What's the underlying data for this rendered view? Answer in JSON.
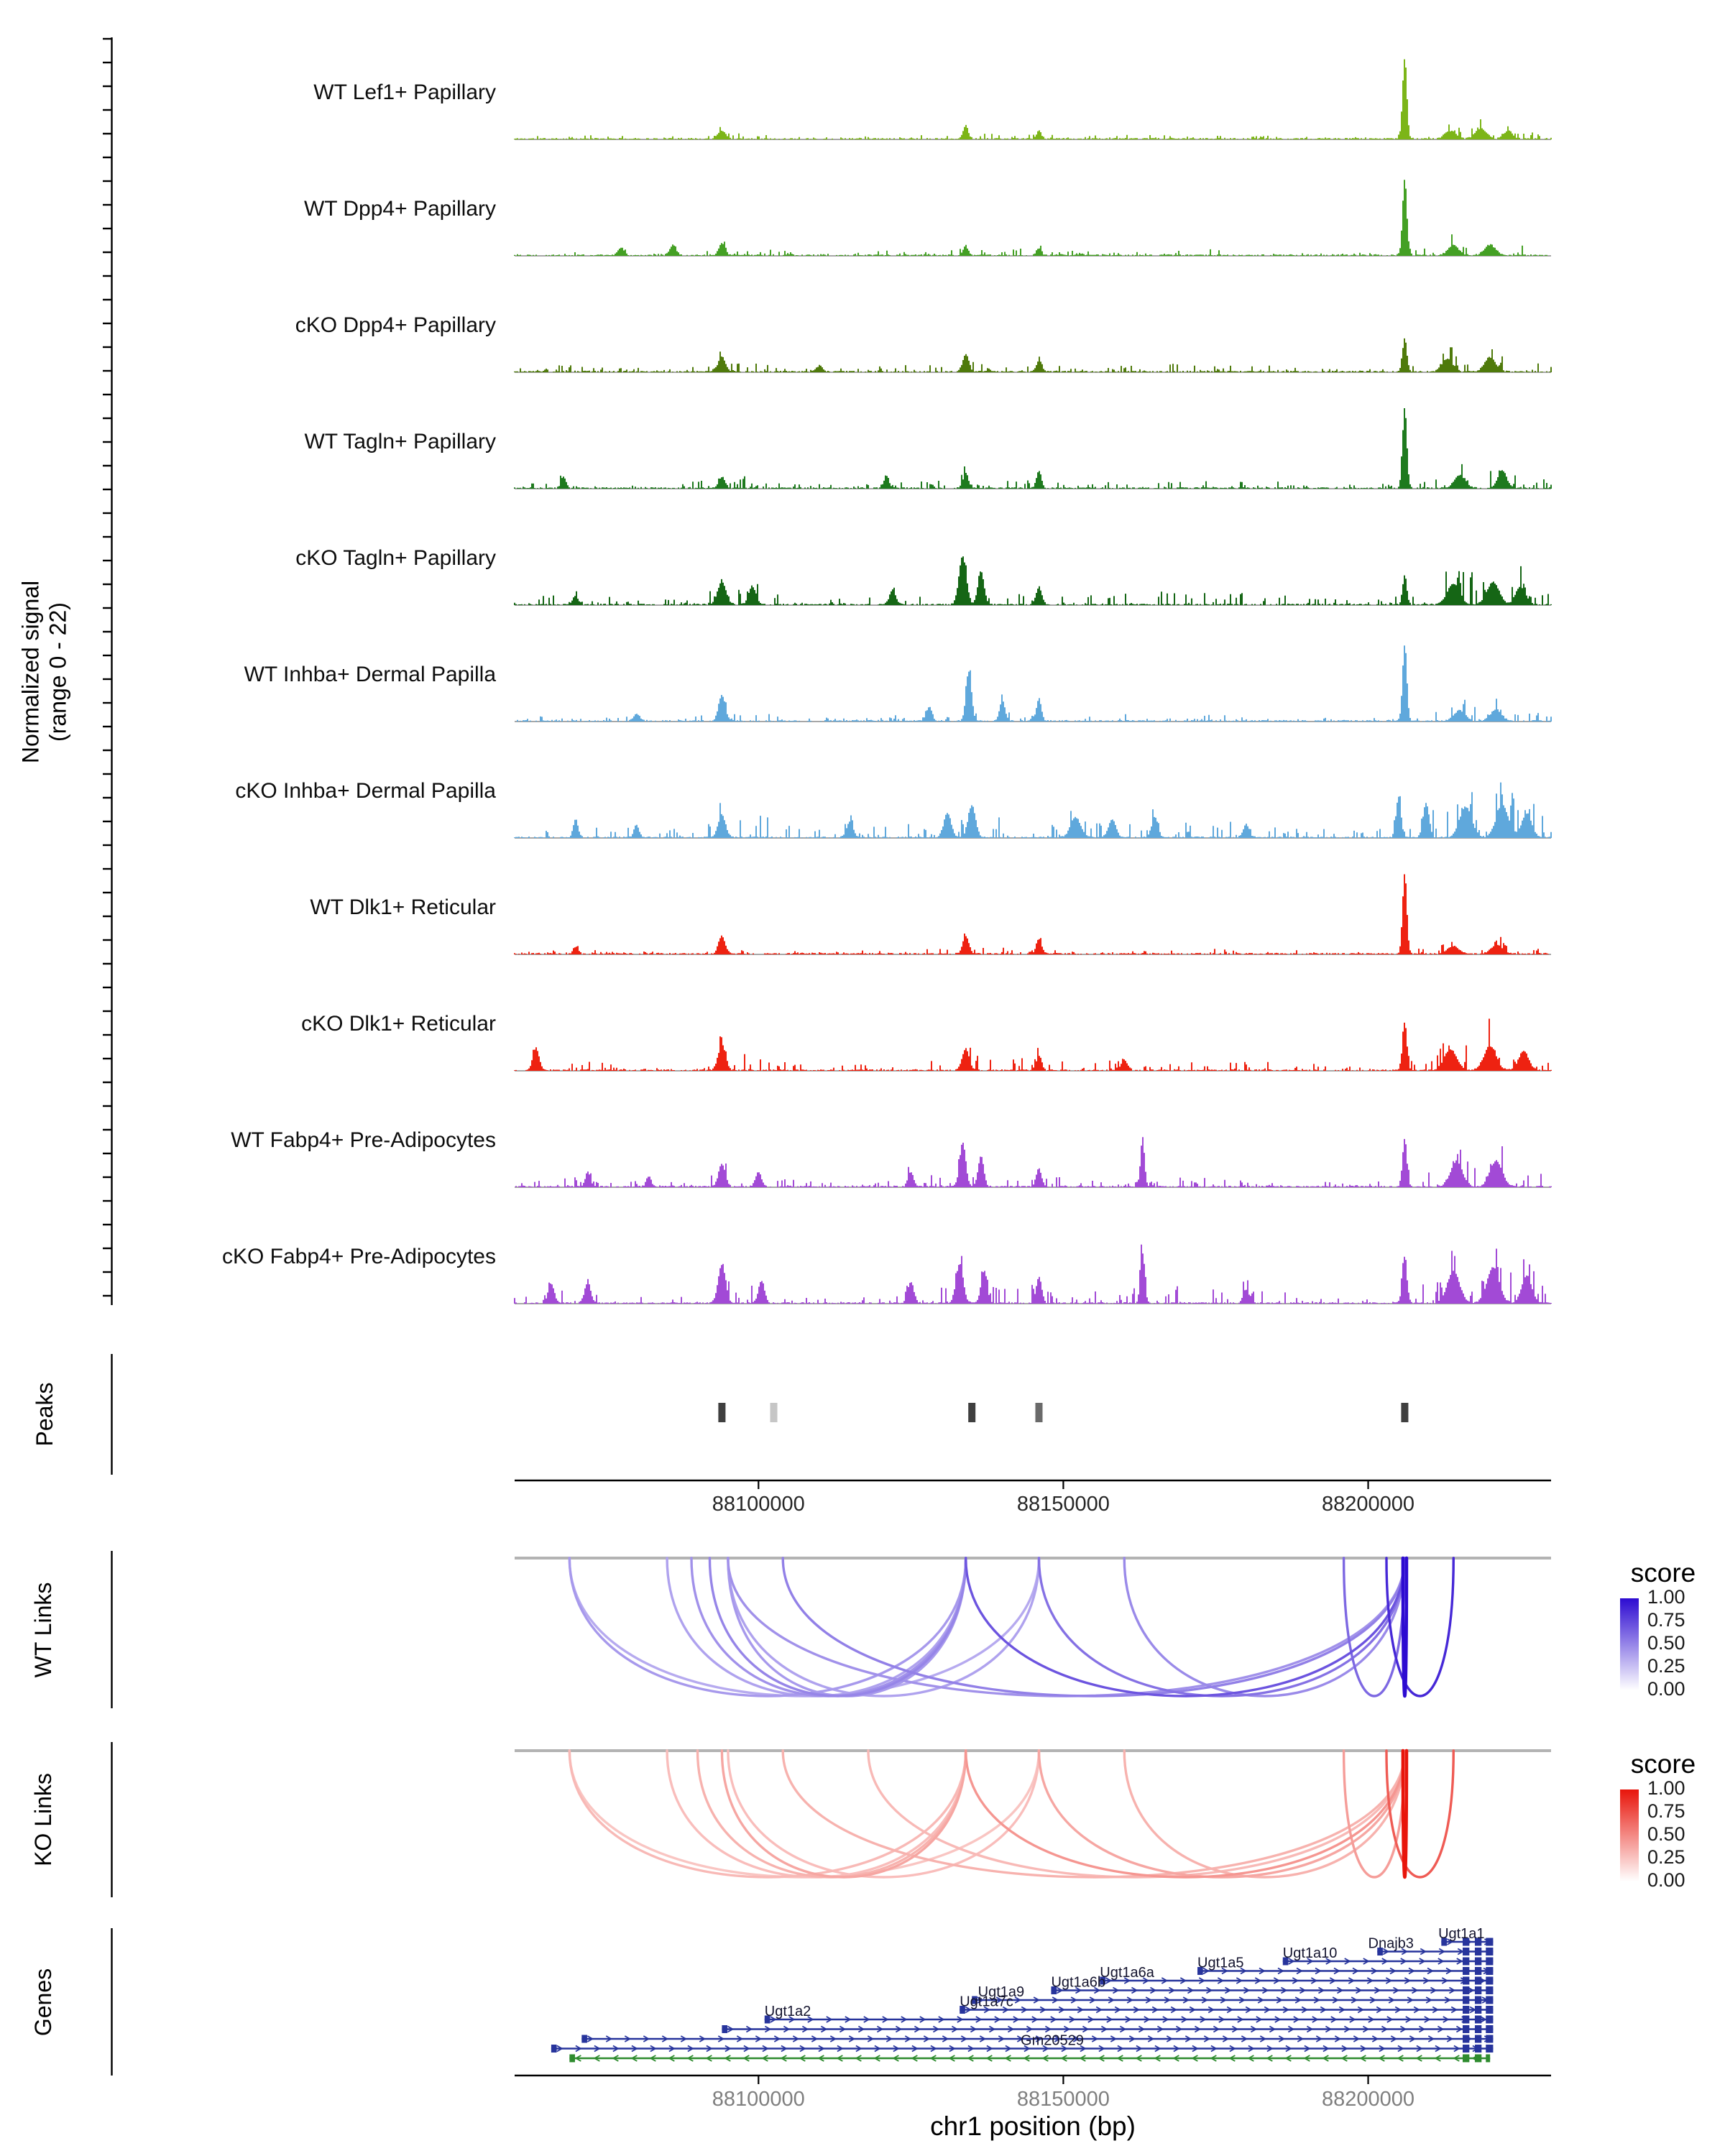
{
  "chart_data": {
    "type": "genome-tracks",
    "region": {
      "chrom": "chr1",
      "xmin": 88060000,
      "xmax": 88230000
    },
    "xaxis": {
      "ticks": [
        88100000,
        88150000,
        88200000
      ],
      "labels": [
        "88100000",
        "88150000",
        "88200000"
      ],
      "title": "chr1 position (bp)"
    },
    "signal_axis_label": {
      "line1": "Normalized signal",
      "line2": "(range 0 - 22)"
    },
    "tracks": [
      {
        "label": "WT Lef1+ Papillary",
        "color": "#7CB518",
        "seed": 11,
        "noise": 0.05,
        "peaks": [
          [
            88094000,
            0.1,
            600
          ],
          [
            88134000,
            0.17,
            400
          ],
          [
            88146000,
            0.1,
            400
          ],
          [
            88206000,
            1.0,
            350
          ],
          [
            88213500,
            0.1,
            900
          ],
          [
            88218500,
            0.13,
            900
          ],
          [
            88223000,
            0.1,
            700
          ]
        ]
      },
      {
        "label": "WT Dpp4+ Papillary",
        "color": "#44A024",
        "seed": 22,
        "noise": 0.07,
        "peaks": [
          [
            88077500,
            0.09,
            500
          ],
          [
            88086000,
            0.13,
            500
          ],
          [
            88094000,
            0.15,
            500
          ],
          [
            88134000,
            0.11,
            400
          ],
          [
            88146000,
            0.09,
            400
          ],
          [
            88206000,
            0.95,
            350
          ],
          [
            88214000,
            0.12,
            900
          ],
          [
            88220000,
            0.13,
            900
          ]
        ]
      },
      {
        "label": "cKO Dpp4+ Papillary",
        "color": "#4F7A0B",
        "seed": 33,
        "noise": 0.09,
        "peaks": [
          [
            88094000,
            0.18,
            600
          ],
          [
            88110000,
            0.07,
            500
          ],
          [
            88134000,
            0.22,
            500
          ],
          [
            88146000,
            0.13,
            450
          ],
          [
            88206000,
            0.42,
            350
          ],
          [
            88213000,
            0.16,
            900
          ],
          [
            88220000,
            0.18,
            900
          ]
        ]
      },
      {
        "label": "WT Tagln+ Papillary",
        "color": "#1E7A1E",
        "seed": 44,
        "noise": 0.1,
        "peaks": [
          [
            88068000,
            0.14,
            400
          ],
          [
            88094000,
            0.14,
            500
          ],
          [
            88121000,
            0.16,
            400
          ],
          [
            88134000,
            0.18,
            450
          ],
          [
            88146000,
            0.22,
            400
          ],
          [
            88206000,
            1.0,
            350
          ],
          [
            88215000,
            0.16,
            900
          ],
          [
            88222000,
            0.22,
            700
          ]
        ]
      },
      {
        "label": "cKO Tagln+ Papillary",
        "color": "#156615",
        "seed": 55,
        "noise": 0.16,
        "peaks": [
          [
            88070000,
            0.1,
            500
          ],
          [
            88094000,
            0.28,
            700
          ],
          [
            88099000,
            0.22,
            600
          ],
          [
            88122000,
            0.18,
            500
          ],
          [
            88133500,
            0.6,
            600
          ],
          [
            88136500,
            0.42,
            500
          ],
          [
            88146000,
            0.22,
            450
          ],
          [
            88206000,
            0.36,
            350
          ],
          [
            88214000,
            0.26,
            1000
          ],
          [
            88220500,
            0.28,
            1000
          ],
          [
            88225000,
            0.22,
            800
          ]
        ]
      },
      {
        "label": "WT Inhba+ Dermal Papilla",
        "color": "#5FA8DC",
        "seed": 66,
        "noise": 0.08,
        "peaks": [
          [
            88080000,
            0.09,
            500
          ],
          [
            88094000,
            0.32,
            550
          ],
          [
            88128000,
            0.18,
            450
          ],
          [
            88134500,
            0.62,
            450
          ],
          [
            88140000,
            0.26,
            450
          ],
          [
            88146000,
            0.28,
            400
          ],
          [
            88206000,
            0.95,
            350
          ],
          [
            88215000,
            0.13,
            900
          ],
          [
            88221000,
            0.14,
            900
          ]
        ]
      },
      {
        "label": "cKO Inhba+ Dermal Papilla",
        "color": "#5FA8DC",
        "seed": 77,
        "noise": 0.22,
        "peaks": [
          [
            88070000,
            0.22,
            400
          ],
          [
            88080000,
            0.16,
            400
          ],
          [
            88094000,
            0.28,
            600
          ],
          [
            88115000,
            0.2,
            500
          ],
          [
            88131000,
            0.3,
            600
          ],
          [
            88135000,
            0.4,
            600
          ],
          [
            88152000,
            0.25,
            800
          ],
          [
            88158000,
            0.22,
            600
          ],
          [
            88165000,
            0.26,
            500
          ],
          [
            88180000,
            0.16,
            500
          ],
          [
            88205000,
            0.5,
            400
          ],
          [
            88209500,
            0.42,
            500
          ],
          [
            88216000,
            0.38,
            1000
          ],
          [
            88222000,
            0.4,
            1000
          ],
          [
            88226000,
            0.3,
            800
          ]
        ]
      },
      {
        "label": "WT Dlk1+ Reticular",
        "color": "#EE2211",
        "seed": 88,
        "noise": 0.06,
        "peaks": [
          [
            88070000,
            0.09,
            400
          ],
          [
            88094000,
            0.22,
            550
          ],
          [
            88134000,
            0.22,
            500
          ],
          [
            88146000,
            0.18,
            450
          ],
          [
            88206000,
            1.0,
            350
          ],
          [
            88214000,
            0.1,
            900
          ],
          [
            88221000,
            0.11,
            900
          ]
        ]
      },
      {
        "label": "cKO Dlk1+ Reticular",
        "color": "#EE2211",
        "seed": 99,
        "noise": 0.14,
        "peaks": [
          [
            88063500,
            0.28,
            500
          ],
          [
            88094000,
            0.32,
            600
          ],
          [
            88134000,
            0.27,
            550
          ],
          [
            88146000,
            0.18,
            450
          ],
          [
            88160000,
            0.13,
            500
          ],
          [
            88206000,
            0.6,
            350
          ],
          [
            88213500,
            0.26,
            1000
          ],
          [
            88220000,
            0.3,
            1000
          ],
          [
            88225500,
            0.24,
            800
          ]
        ]
      },
      {
        "label": "WT Fabp4+ Pre-Adipocytes",
        "color": "#A24AD6",
        "seed": 110,
        "noise": 0.14,
        "peaks": [
          [
            88072000,
            0.18,
            400
          ],
          [
            88082000,
            0.13,
            400
          ],
          [
            88094000,
            0.28,
            550
          ],
          [
            88100000,
            0.18,
            500
          ],
          [
            88125000,
            0.18,
            450
          ],
          [
            88133500,
            0.55,
            500
          ],
          [
            88136500,
            0.38,
            450
          ],
          [
            88146000,
            0.22,
            450
          ],
          [
            88163000,
            0.55,
            350
          ],
          [
            88206000,
            0.6,
            350
          ],
          [
            88214500,
            0.3,
            1000
          ],
          [
            88221000,
            0.32,
            1000
          ]
        ]
      },
      {
        "label": "cKO Fabp4+ Pre-Adipocytes",
        "color": "#A24AD6",
        "seed": 121,
        "noise": 0.2,
        "peaks": [
          [
            88066000,
            0.24,
            500
          ],
          [
            88072000,
            0.26,
            500
          ],
          [
            88094000,
            0.48,
            600
          ],
          [
            88100500,
            0.28,
            500
          ],
          [
            88125000,
            0.26,
            500
          ],
          [
            88133000,
            0.48,
            600
          ],
          [
            88137000,
            0.4,
            500
          ],
          [
            88146000,
            0.32,
            450
          ],
          [
            88163000,
            0.62,
            350
          ],
          [
            88180000,
            0.16,
            500
          ],
          [
            88206000,
            0.5,
            400
          ],
          [
            88214000,
            0.4,
            1000
          ],
          [
            88220500,
            0.44,
            1000
          ],
          [
            88226000,
            0.34,
            800
          ]
        ]
      }
    ],
    "peaks_row": {
      "label": "Peaks",
      "items": [
        {
          "pos": 88094000,
          "fill": "#3F3F3F"
        },
        {
          "pos": 88102500,
          "fill": "#C6C6C6"
        },
        {
          "pos": 88135000,
          "fill": "#3F3F3F"
        },
        {
          "pos": 88146000,
          "fill": "#6A6A6A"
        },
        {
          "pos": 88206000,
          "fill": "#3F3F3F"
        }
      ]
    },
    "links": {
      "wt": {
        "label": "WT Links",
        "legend_title": "score",
        "legend_labels": [
          "1.00",
          "0.75",
          "0.50",
          "0.25",
          "0.00"
        ],
        "high_color": "#2D0BD1",
        "arcs": [
          {
            "from": 88069000,
            "to": 88134000,
            "score": 0.42
          },
          {
            "from": 88085000,
            "to": 88134000,
            "score": 0.38
          },
          {
            "from": 88089000,
            "to": 88134000,
            "score": 0.45
          },
          {
            "from": 88092000,
            "to": 88134000,
            "score": 0.5
          },
          {
            "from": 88095000,
            "to": 88134000,
            "score": 0.42
          },
          {
            "from": 88095000,
            "to": 88146000,
            "score": 0.38
          },
          {
            "from": 88069000,
            "to": 88146000,
            "score": 0.35
          },
          {
            "from": 88104000,
            "to": 88206000,
            "score": 0.52
          },
          {
            "from": 88095000,
            "to": 88206000,
            "score": 0.45
          },
          {
            "from": 88134000,
            "to": 88206000,
            "score": 0.7
          },
          {
            "from": 88146000,
            "to": 88206000,
            "score": 0.58
          },
          {
            "from": 88160000,
            "to": 88206000,
            "score": 0.48
          },
          {
            "from": 88196000,
            "to": 88206000,
            "score": 0.62
          },
          {
            "from": 88203000,
            "to": 88214000,
            "score": 0.88
          },
          {
            "from": 88205700,
            "to": 88206300,
            "score": 1.0
          }
        ]
      },
      "ko": {
        "label": "KO Links",
        "legend_title": "score",
        "legend_labels": [
          "1.00",
          "0.75",
          "0.50",
          "0.25",
          "0.00"
        ],
        "high_color": "#E8150B",
        "arcs": [
          {
            "from": 88069000,
            "to": 88134000,
            "score": 0.3
          },
          {
            "from": 88085000,
            "to": 88134000,
            "score": 0.28
          },
          {
            "from": 88090000,
            "to": 88134000,
            "score": 0.33
          },
          {
            "from": 88094000,
            "to": 88134000,
            "score": 0.38
          },
          {
            "from": 88095000,
            "to": 88146000,
            "score": 0.28
          },
          {
            "from": 88069000,
            "to": 88146000,
            "score": 0.25
          },
          {
            "from": 88104000,
            "to": 88206000,
            "score": 0.33
          },
          {
            "from": 88118000,
            "to": 88206000,
            "score": 0.3
          },
          {
            "from": 88134000,
            "to": 88206000,
            "score": 0.45
          },
          {
            "from": 88146000,
            "to": 88206000,
            "score": 0.38
          },
          {
            "from": 88160000,
            "to": 88206000,
            "score": 0.33
          },
          {
            "from": 88196000,
            "to": 88206000,
            "score": 0.42
          },
          {
            "from": 88203000,
            "to": 88214000,
            "score": 0.7
          },
          {
            "from": 88205700,
            "to": 88206300,
            "score": 1.0
          }
        ]
      }
    },
    "genes": {
      "label": "Genes",
      "forward_color": "#27349C",
      "reverse_color": "#2E8B2E",
      "rows": [
        {
          "name": "Ugt1a1",
          "start": 88212000,
          "end": 88220500,
          "strand": "+",
          "label_pos": 88211500
        },
        {
          "name": "Dnajb3",
          "start": 88201500,
          "end": 88220500,
          "strand": "+",
          "label_pos": 88200000
        },
        {
          "name": "Ugt1a10",
          "start": 88186000,
          "end": 88220500,
          "strand": "+",
          "label_pos": 88186000
        },
        {
          "name": "Ugt1a5",
          "start": 88172000,
          "end": 88220500,
          "strand": "+",
          "label_pos": 88172000
        },
        {
          "name": "Ugt1a6a",
          "start": 88156000,
          "end": 88220500,
          "strand": "+",
          "label_pos": 88156000
        },
        {
          "name": "Ugt1a6b",
          "start": 88148000,
          "end": 88220500,
          "strand": "+",
          "label_pos": 88148000
        },
        {
          "name": "Ugt1a9",
          "start": 88135000,
          "end": 88220500,
          "strand": "+",
          "label_pos": 88136000
        },
        {
          "name": "Ugt1a7c",
          "start": 88133000,
          "end": 88220500,
          "strand": "+",
          "label_pos": 88133000
        },
        {
          "name": "Ugt1a2",
          "start": 88101000,
          "end": 88220500,
          "strand": "+",
          "label_pos": 88101000
        },
        {
          "name": "",
          "start": 88094000,
          "end": 88220500,
          "strand": "+",
          "label_pos": 88094000
        },
        {
          "name": "",
          "start": 88071000,
          "end": 88220500,
          "strand": "+",
          "label_pos": 88071000
        },
        {
          "name": "Gm20529",
          "start": 88066000,
          "end": 88220500,
          "strand": "+",
          "label_pos": 88143000
        },
        {
          "name": "",
          "start": 88069000,
          "end": 88220000,
          "strand": "-",
          "label_pos": 88069000
        }
      ]
    }
  }
}
